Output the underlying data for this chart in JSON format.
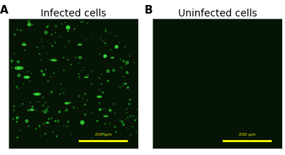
{
  "panel_A_label": "A",
  "panel_B_label": "B",
  "panel_A_title": "Infected cells",
  "panel_B_title": "Uninfected cells",
  "bg_color": "#061406",
  "cell_color_bright": "#3aee3a",
  "cell_color_mid": "#1faa1f",
  "cell_color_dim": "#0d6e0d",
  "scale_bar_color": "#ffff00",
  "scale_bar_text": "200 μm",
  "scale_text_color": "#e8e800",
  "title_fontsize": 10,
  "label_fontsize": 11,
  "scalebar_fontsize": 4.5,
  "num_cells": 200,
  "seed": 77,
  "outer_bg": "#ffffff"
}
